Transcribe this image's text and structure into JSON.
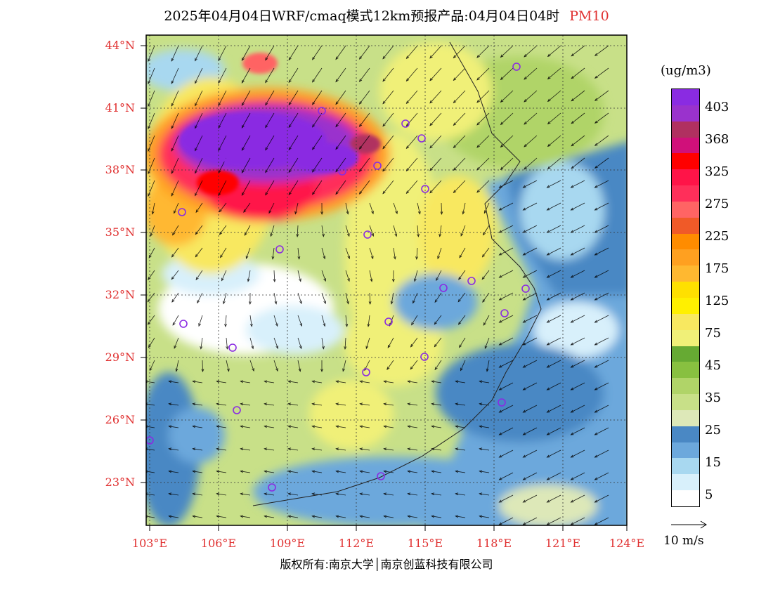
{
  "title": {
    "main": "2025年04月04日WRF/cmaq模式12km预报产品:04月04日04时",
    "pollutant": "PM10"
  },
  "lat_labels": [
    "44°N",
    "41°N",
    "38°N",
    "35°N",
    "32°N",
    "29°N",
    "26°N",
    "23°N"
  ],
  "lon_labels": [
    "103°E",
    "106°E",
    "109°E",
    "112°E",
    "115°E",
    "118°E",
    "121°E",
    "124°E"
  ],
  "colorbar": {
    "unit": "(ug/m3)",
    "colors": [
      "#8a2be2",
      "#9a32cd",
      "#b03060",
      "#d0107a",
      "#ff0000",
      "#ff1448",
      "#ff2f5a",
      "#ff6464",
      "#f05a28",
      "#ff8c00",
      "#ffa020",
      "#ffb830",
      "#ffe000",
      "#fff000",
      "#f8e860",
      "#f0f078",
      "#66aa33",
      "#88c040",
      "#b0d468",
      "#c8e088",
      "#dde8b8",
      "#4a88c4",
      "#6ca8dc",
      "#a8d8f0",
      "#d8f0fb",
      "#ffffff"
    ],
    "labels": [
      "403",
      "368",
      "325",
      "275",
      "225",
      "175",
      "125",
      "75",
      "45",
      "35",
      "25",
      "15",
      "5"
    ]
  },
  "wind_legend": "10 m/s",
  "copyright": "版权所有:南京大学│南京创蓝科技有限公司"
}
